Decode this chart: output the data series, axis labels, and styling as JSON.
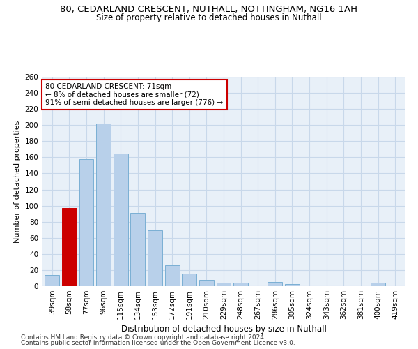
{
  "title1": "80, CEDARLAND CRESCENT, NUTHALL, NOTTINGHAM, NG16 1AH",
  "title2": "Size of property relative to detached houses in Nuthall",
  "xlabel": "Distribution of detached houses by size in Nuthall",
  "ylabel": "Number of detached properties",
  "categories": [
    "39sqm",
    "58sqm",
    "77sqm",
    "96sqm",
    "115sqm",
    "134sqm",
    "153sqm",
    "172sqm",
    "191sqm",
    "210sqm",
    "229sqm",
    "248sqm",
    "267sqm",
    "286sqm",
    "305sqm",
    "324sqm",
    "343sqm",
    "362sqm",
    "381sqm",
    "400sqm",
    "419sqm"
  ],
  "values": [
    14,
    97,
    158,
    202,
    165,
    91,
    69,
    26,
    16,
    8,
    4,
    4,
    0,
    5,
    3,
    0,
    0,
    0,
    0,
    4,
    0
  ],
  "highlight_index": 1,
  "bar_color": "#b8d0ea",
  "bar_edge_color": "#7aafd4",
  "highlight_color": "#cc0000",
  "highlight_edge_color": "#cc0000",
  "annotation_text": "80 CEDARLAND CRESCENT: 71sqm\n← 8% of detached houses are smaller (72)\n91% of semi-detached houses are larger (776) →",
  "annotation_box_color": "white",
  "annotation_box_edge_color": "#cc0000",
  "footer1": "Contains HM Land Registry data © Crown copyright and database right 2024.",
  "footer2": "Contains public sector information licensed under the Open Government Licence v3.0.",
  "ylim": [
    0,
    260
  ],
  "yticks": [
    0,
    20,
    40,
    60,
    80,
    100,
    120,
    140,
    160,
    180,
    200,
    220,
    240,
    260
  ],
  "grid_color": "#c8d8ea",
  "bg_color": "#e8f0f8",
  "title1_fontsize": 9.5,
  "title2_fontsize": 8.5,
  "xlabel_fontsize": 8.5,
  "ylabel_fontsize": 8,
  "tick_fontsize": 7.5,
  "annotation_fontsize": 7.5,
  "footer_fontsize": 6.5
}
